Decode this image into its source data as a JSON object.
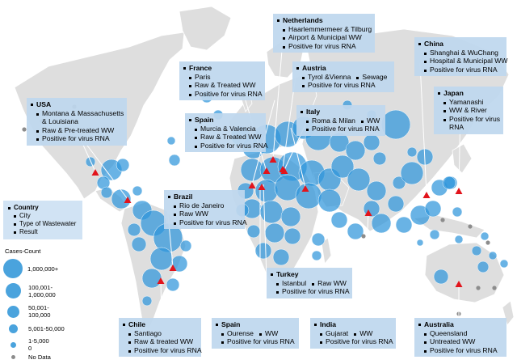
{
  "colors": {
    "bubble": "#2f95db",
    "land": "#dedede",
    "marker": "#e2141c",
    "box": "#bed7ee"
  },
  "map": {
    "cards": [
      {
        "id": "usa",
        "country": "USA",
        "lines": [
          "Montana & Massachusetts",
          "& Louisiana",
          "Raw & Pre-treated WW",
          "Positive for virus RNA"
        ]
      },
      {
        "id": "france",
        "country": "France",
        "lines": [
          "Paris",
          "Raw & Treated WW",
          "Positive for virus RNA"
        ]
      },
      {
        "id": "netherlands",
        "country": "Netherlands",
        "lines": [
          "Haarlemmermeer & Tilburg",
          "Airport & Municipal WW",
          "Positive for virus RNA"
        ]
      },
      {
        "id": "austria",
        "country": "Austria",
        "lines": [
          "Tyrol &Vienna",
          "Sewage",
          "Positive for virus RNA"
        ]
      },
      {
        "id": "china",
        "country": "China",
        "lines": [
          "Shanghai & WuChang",
          "Hospital & Municipal WW",
          "Positive for virus RNA"
        ]
      },
      {
        "id": "japan",
        "country": "Japan",
        "lines": [
          "Yamanashi",
          "WW & River",
          "Positive for virus",
          "RNA"
        ]
      },
      {
        "id": "spain_top",
        "country": "Spain",
        "lines": [
          "Murcia & Valencia",
          "Raw & Treated WW",
          "Positive for virus RNA"
        ]
      },
      {
        "id": "italy",
        "country": "Italy",
        "lines": [
          "Roma & Milan",
          "WW",
          "Positive for virus RNA"
        ]
      },
      {
        "id": "brazil",
        "country": "Brazil",
        "lines": [
          "Rio de Janeiro",
          "Raw WW",
          "Positive for virus RNA"
        ]
      },
      {
        "id": "turkey",
        "country": "Turkey",
        "lines": [
          "Istanbul",
          "Raw WW",
          "Positive for virus RNA"
        ]
      },
      {
        "id": "chile",
        "country": "Chile",
        "lines": [
          "Santiago",
          "Raw & treated WW",
          "Positive for virus RNA"
        ]
      },
      {
        "id": "spain_bottom",
        "country": "Spain",
        "lines": [
          "Ourense",
          "WW",
          "Positive for virus RNA"
        ]
      },
      {
        "id": "india",
        "country": "India",
        "lines": [
          "Gujarat",
          "WW",
          "Positive for virus RNA"
        ]
      },
      {
        "id": "australia",
        "country": "Australia",
        "lines": [
          "Queensland",
          "Untreated WW",
          "Positive for virus RNA"
        ]
      }
    ],
    "legend": {
      "country": "Country",
      "items": [
        "City",
        "Type of Wastewater",
        "Result"
      ]
    },
    "size_legend": {
      "title": "Cases-Count",
      "items": [
        {
          "label": "1,000,000+"
        },
        {
          "label": "100,001-\n1,000,000"
        },
        {
          "label": "50,001-\n100,000"
        },
        {
          "label": "5,001-50,000"
        },
        {
          "label": "1-5,000\n0"
        },
        {
          "label": "No Data"
        }
      ]
    }
  }
}
